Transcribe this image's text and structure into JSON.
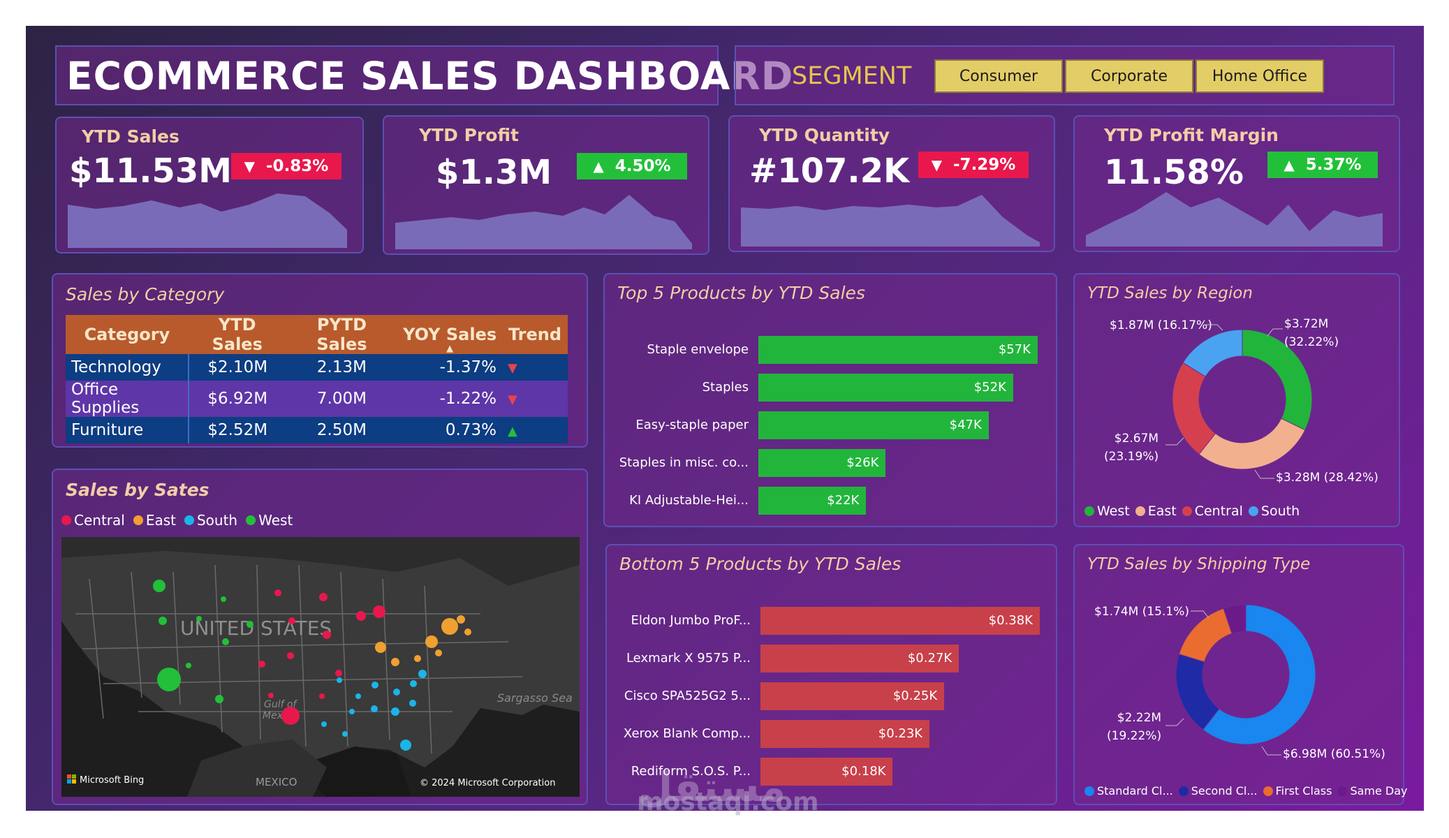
{
  "header": {
    "title": "ECOMMERCE SALES DASHBOARD",
    "segment_label": "SEGMENT",
    "segments": [
      "Consumer",
      "Corporate",
      "Home Office"
    ]
  },
  "kpis": [
    {
      "title": "YTD Sales",
      "value": "$11.53M",
      "change": "-0.83%",
      "direction": "down"
    },
    {
      "title": "YTD Profit",
      "value": "$1.3M",
      "change": "4.50%",
      "direction": "up"
    },
    {
      "title": "YTD Quantity",
      "value": "#107.2K",
      "change": "-7.29%",
      "direction": "down"
    },
    {
      "title": "YTD Profit Margin",
      "value": "11.58%",
      "change": "5.37%",
      "direction": "up"
    }
  ],
  "sales_by_category": {
    "title": "Sales by Category",
    "columns": [
      "Category",
      "YTD Sales",
      "PYTD Sales",
      "YOY Sales",
      "Trend"
    ],
    "rows": [
      {
        "category": "Technology",
        "ytd": "$2.10M",
        "pytd": "2.13M",
        "yoy": "-1.37%",
        "trend": "down"
      },
      {
        "category": "Office Supplies",
        "ytd": "$6.92M",
        "pytd": "7.00M",
        "yoy": "-1.22%",
        "trend": "down"
      },
      {
        "category": "Furniture",
        "ytd": "$2.52M",
        "pytd": "2.50M",
        "yoy": "0.73%",
        "trend": "up"
      }
    ]
  },
  "sales_by_states": {
    "title": "Sales by Sates",
    "legend": [
      {
        "name": "Central",
        "color": "#e8184d"
      },
      {
        "name": "East",
        "color": "#f0a030"
      },
      {
        "name": "South",
        "color": "#1bb5e8"
      },
      {
        "name": "West",
        "color": "#22c039"
      }
    ],
    "map_labels": {
      "country": "UNITED STATES",
      "gulf": "Gulf of",
      "gulf2": "Mexico",
      "sea": "Sargasso Sea",
      "mexico": "MEXICO",
      "bing": "Microsoft Bing",
      "copyright": "© 2024 Microsoft Corporation"
    }
  },
  "top5": {
    "title": "Top 5 Products by YTD Sales",
    "color": "#22b53c",
    "items": [
      {
        "label": "Staple envelope",
        "value": 57,
        "display": "$57K"
      },
      {
        "label": "Staples",
        "value": 52,
        "display": "$52K"
      },
      {
        "label": "Easy-staple paper",
        "value": 47,
        "display": "$47K"
      },
      {
        "label": "Staples in misc. co...",
        "value": 26,
        "display": "$26K"
      },
      {
        "label": "KI Adjustable-Hei...",
        "value": 22,
        "display": "$22K"
      }
    ]
  },
  "bottom5": {
    "title": "Bottom 5 Products by YTD Sales",
    "color": "#c8404a",
    "items": [
      {
        "label": "Eldon Jumbo ProF...",
        "value": 0.38,
        "display": "$0.38K"
      },
      {
        "label": "Lexmark X 9575 P...",
        "value": 0.27,
        "display": "$0.27K"
      },
      {
        "label": "Cisco SPA525G2 5...",
        "value": 0.25,
        "display": "$0.25K"
      },
      {
        "label": "Xerox Blank Comp...",
        "value": 0.23,
        "display": "$0.23K"
      },
      {
        "label": "Rediform S.O.S. P...",
        "value": 0.18,
        "display": "$0.18K"
      }
    ]
  },
  "region": {
    "title": "YTD Sales by Region",
    "slices": [
      {
        "name": "West",
        "value": 32.22,
        "color": "#22b53c",
        "label1": "$3.72M",
        "label2": "(32.22%)"
      },
      {
        "name": "East",
        "value": 28.42,
        "color": "#f3b08e",
        "label1": "$3.28M (28.42%)",
        "label2": ""
      },
      {
        "name": "Central",
        "value": 23.19,
        "color": "#d6404e",
        "label1": "$2.67M",
        "label2": "(23.19%)"
      },
      {
        "name": "South",
        "value": 16.17,
        "color": "#4aa3f0",
        "label1": "$1.87M (16.17%)",
        "label2": ""
      }
    ]
  },
  "shipping": {
    "title": "YTD Sales by Shipping Type",
    "slices": [
      {
        "name": "Standard Cl...",
        "value": 60.51,
        "color": "#1a86f0",
        "label1": "$6.98M (60.51%)",
        "label2": ""
      },
      {
        "name": "Second Cl...",
        "value": 19.22,
        "color": "#1f2aa6",
        "label1": "$2.22M",
        "label2": "(19.22%)"
      },
      {
        "name": "First Class",
        "value": 15.1,
        "color": "#ea6c31",
        "label1": "$1.74M (15.1%)",
        "label2": ""
      },
      {
        "name": "Same Day",
        "value": 5.17,
        "color": "#6b1a8a",
        "label1": "",
        "label2": ""
      }
    ]
  },
  "watermark": {
    "arabic": "مستقل",
    "latin": "mostaql.com"
  }
}
